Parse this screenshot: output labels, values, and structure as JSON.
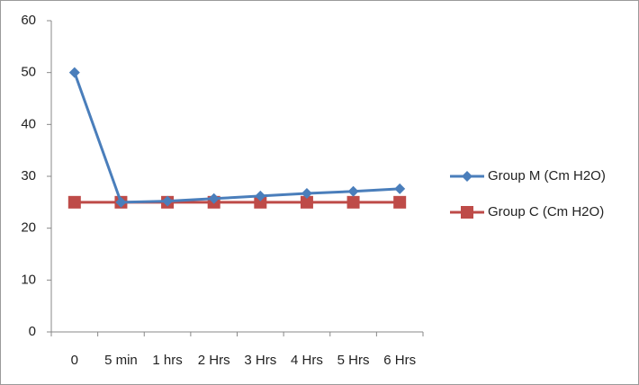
{
  "chart_data": {
    "type": "line",
    "categories": [
      "0",
      "5 min",
      "1 hrs",
      "2 Hrs",
      "3 Hrs",
      "4 Hrs",
      "5 Hrs",
      "6 Hrs"
    ],
    "series": [
      {
        "name": "Group M (Cm H2O)",
        "color": "#4a7ebb",
        "marker": "diamond",
        "values": [
          50,
          25,
          25.2,
          25.7,
          26.2,
          26.7,
          27.1,
          27.6
        ]
      },
      {
        "name": "Group C (Cm H2O)",
        "color": "#be4b48",
        "marker": "square",
        "values": [
          25,
          25,
          25,
          25,
          25,
          25,
          25,
          25
        ]
      }
    ],
    "ylim": [
      0,
      60
    ],
    "yticks": [
      0,
      10,
      20,
      30,
      40,
      50,
      60
    ],
    "grid": false,
    "legend": "right"
  }
}
